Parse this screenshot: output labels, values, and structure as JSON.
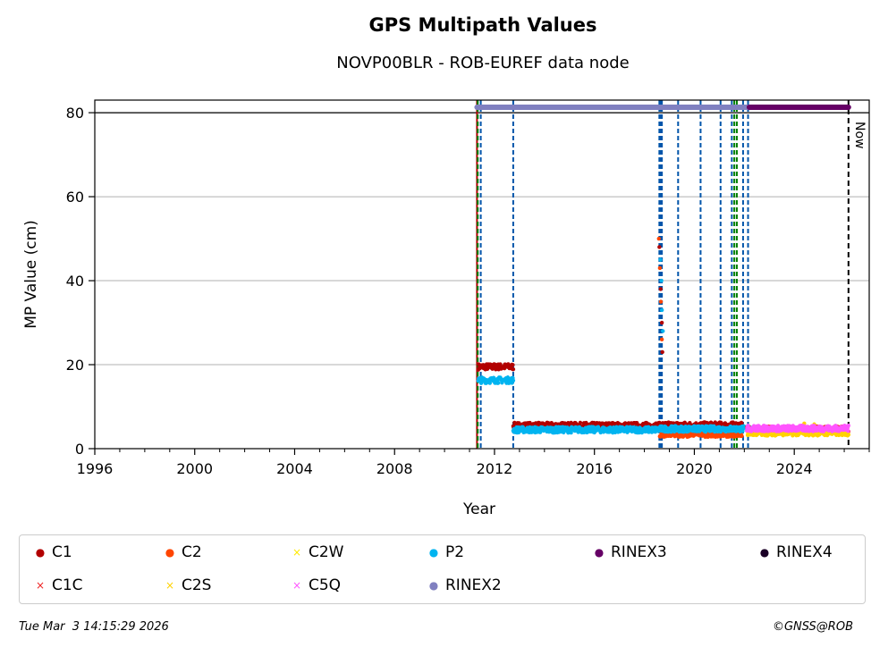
{
  "chart_data": {
    "type": "scatter",
    "title": "GPS Multipath Values",
    "subtitle": "NOVP00BLR - ROB-EUREF data node",
    "xlabel": "Year",
    "ylabel": "MP Value (cm)",
    "xlim": [
      1996,
      2027
    ],
    "ylim": [
      0,
      83
    ],
    "x_ticks": [
      1996,
      2000,
      2004,
      2008,
      2012,
      2016,
      2020,
      2024
    ],
    "y_ticks": [
      0,
      20,
      40,
      60,
      80
    ],
    "grid": "horizontal",
    "now_label": "Now",
    "now_year": 2026.17,
    "series": [
      {
        "name": "C1",
        "marker": "dot",
        "color": "#b20000",
        "segments": [
          {
            "x": [
              2011.35,
              2012.75
            ],
            "y": 19.5
          },
          {
            "x": [
              2012.75,
              2018.6
            ],
            "y": 5.5
          },
          {
            "x": [
              2018.6,
              2021.9
            ],
            "y": 5.6
          }
        ],
        "points": [
          [
            2018.6,
            48
          ],
          [
            2018.65,
            38
          ],
          [
            2018.7,
            30
          ],
          [
            2018.72,
            23
          ]
        ]
      },
      {
        "name": "C2",
        "marker": "dot",
        "color": "#ff4500",
        "segments": [
          {
            "x": [
              2018.6,
              2021.9
            ],
            "y": 3.5
          }
        ],
        "points": [
          [
            2018.58,
            50
          ],
          [
            2018.62,
            43
          ],
          [
            2018.66,
            35
          ],
          [
            2018.7,
            26
          ]
        ]
      },
      {
        "name": "C2W",
        "marker": "x",
        "color": "#ffea00",
        "segments": [],
        "points": []
      },
      {
        "name": "P2",
        "marker": "dot",
        "color": "#00b4f0",
        "segments": [
          {
            "x": [
              2011.35,
              2012.75
            ],
            "y": 16.3
          },
          {
            "x": [
              2012.75,
              2018.6
            ],
            "y": 4.5
          },
          {
            "x": [
              2018.6,
              2022.3
            ],
            "y": 4.7
          }
        ],
        "points": [
          [
            2018.64,
            45
          ],
          [
            2018.68,
            40
          ],
          [
            2018.7,
            33
          ],
          [
            2018.74,
            28
          ]
        ]
      },
      {
        "name": "RINEX3",
        "marker": "dot",
        "color": "#660066",
        "segments": [],
        "points": []
      },
      {
        "name": "RINEX4",
        "marker": "dot",
        "color": "#1a0026",
        "segments": [],
        "points": []
      },
      {
        "name": "C1C",
        "marker": "x",
        "color": "#ee2222",
        "segments": [
          {
            "x": [
              2022.1,
              2026.17
            ],
            "y": 4.6
          }
        ],
        "points": []
      },
      {
        "name": "C2S",
        "marker": "x",
        "color": "#ffd200",
        "segments": [
          {
            "x": [
              2022.1,
              2026.17
            ],
            "y": 3.8
          }
        ],
        "points": [
          [
            2024.4,
            6
          ],
          [
            2024.8,
            5.8
          ]
        ]
      },
      {
        "name": "C5Q",
        "marker": "x",
        "color": "#ff55ff",
        "segments": [
          {
            "x": [
              2022.1,
              2026.17
            ],
            "y": 4.8
          }
        ],
        "points": []
      },
      {
        "name": "RINEX2",
        "marker": "dot",
        "color": "#8080c0",
        "segments": [],
        "points": []
      }
    ],
    "rinex_bars": [
      {
        "name": "RINEX2",
        "x": [
          2011.3,
          2022.2
        ],
        "y": 81.3,
        "color": "#8080c0"
      },
      {
        "name": "RINEX3",
        "x": [
          2022.2,
          2026.17
        ],
        "y": 81.3,
        "color": "#660066"
      }
    ],
    "event_lines": [
      {
        "x": 2011.3,
        "color": "#b20000",
        "style": "solid"
      },
      {
        "x": 2011.33,
        "color": "#008000",
        "style": "dashed"
      },
      {
        "x": 2011.45,
        "color": "#0055aa",
        "style": "dashed"
      },
      {
        "x": 2012.75,
        "color": "#0055aa",
        "style": "dashed"
      },
      {
        "x": 2018.6,
        "color": "#0055aa",
        "style": "dashed"
      },
      {
        "x": 2018.65,
        "color": "#0055aa",
        "style": "dashed"
      },
      {
        "x": 2018.7,
        "color": "#0055aa",
        "style": "dashed"
      },
      {
        "x": 2019.35,
        "color": "#0055aa",
        "style": "dashed"
      },
      {
        "x": 2020.25,
        "color": "#0055aa",
        "style": "dashed"
      },
      {
        "x": 2021.05,
        "color": "#0055aa",
        "style": "dashed"
      },
      {
        "x": 2021.5,
        "color": "#0055aa",
        "style": "dashed"
      },
      {
        "x": 2021.6,
        "color": "#008000",
        "style": "dashed"
      },
      {
        "x": 2021.7,
        "color": "#008000",
        "style": "dashed"
      },
      {
        "x": 2021.95,
        "color": "#0055aa",
        "style": "dashed"
      },
      {
        "x": 2022.15,
        "color": "#0055aa",
        "style": "dashed"
      }
    ]
  },
  "legend": [
    {
      "label": "C1",
      "marker": "●",
      "color": "#b20000"
    },
    {
      "label": "C2",
      "marker": "●",
      "color": "#ff4500"
    },
    {
      "label": "C2W",
      "marker": "×",
      "color": "#ffea00"
    },
    {
      "label": "P2",
      "marker": "●",
      "color": "#00b4f0"
    },
    {
      "label": "RINEX3",
      "marker": "●",
      "color": "#660066"
    },
    {
      "label": "RINEX4",
      "marker": "●",
      "color": "#1a0026"
    },
    {
      "label": "C1C",
      "marker": "×",
      "color": "#ee2222"
    },
    {
      "label": "C2S",
      "marker": "×",
      "color": "#ffd200"
    },
    {
      "label": "C5Q",
      "marker": "×",
      "color": "#ff55ff"
    },
    {
      "label": "RINEX2",
      "marker": "●",
      "color": "#8080c0"
    }
  ],
  "footer": {
    "timestamp": "Tue Mar  3 14:15:29 2026",
    "credit": "©GNSS@ROB"
  }
}
